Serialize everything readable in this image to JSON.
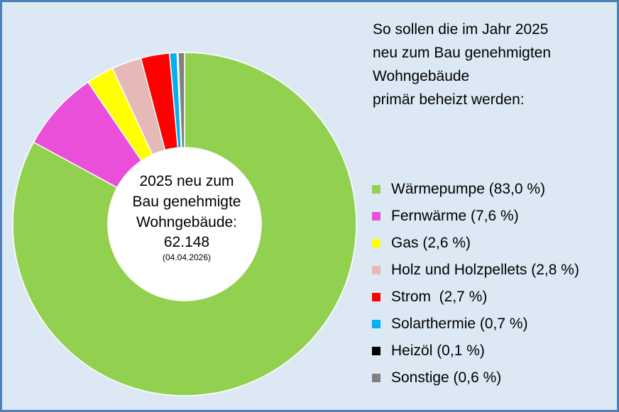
{
  "title_lines": [
    "So sollen die im Jahr 2025",
    "neu zum Bau genehmigten",
    "Wohngebäude",
    "primär beheizt werden:"
  ],
  "center": {
    "lines": [
      "2025 neu zum",
      "Bau genehmigte",
      "Wohngebäude:"
    ],
    "count": "62.148",
    "date": "(04.04.2026)"
  },
  "chart_data": {
    "type": "pie",
    "donut": true,
    "unit": "%",
    "categories": [
      "Wärmepumpe",
      "Fernwärme",
      "Gas",
      "Holz und Holzpellets",
      "Strom",
      "Solarthermie",
      "Heizöl",
      "Sonstige"
    ],
    "values": [
      83.0,
      7.6,
      2.6,
      2.8,
      2.7,
      0.7,
      0.1,
      0.6
    ],
    "colors": [
      "#92d050",
      "#e94fd8",
      "#ffff00",
      "#e6b8b7",
      "#ff0000",
      "#00b0f0",
      "#000000",
      "#808080"
    ],
    "legend_labels": [
      "Wärmepumpe (83,0 %)",
      "Fernwärme (7,6 %)",
      "Gas (2,6 %)",
      "Holz und Holzpellets (2,8 %)",
      "Strom  (2,7 %)",
      "Solarthermie (0,7 %)",
      "Heizöl (0,1 %)",
      "Sonstige (0,6 %)"
    ],
    "legend_position": "right",
    "start": "12 o'clock, clockwise"
  }
}
